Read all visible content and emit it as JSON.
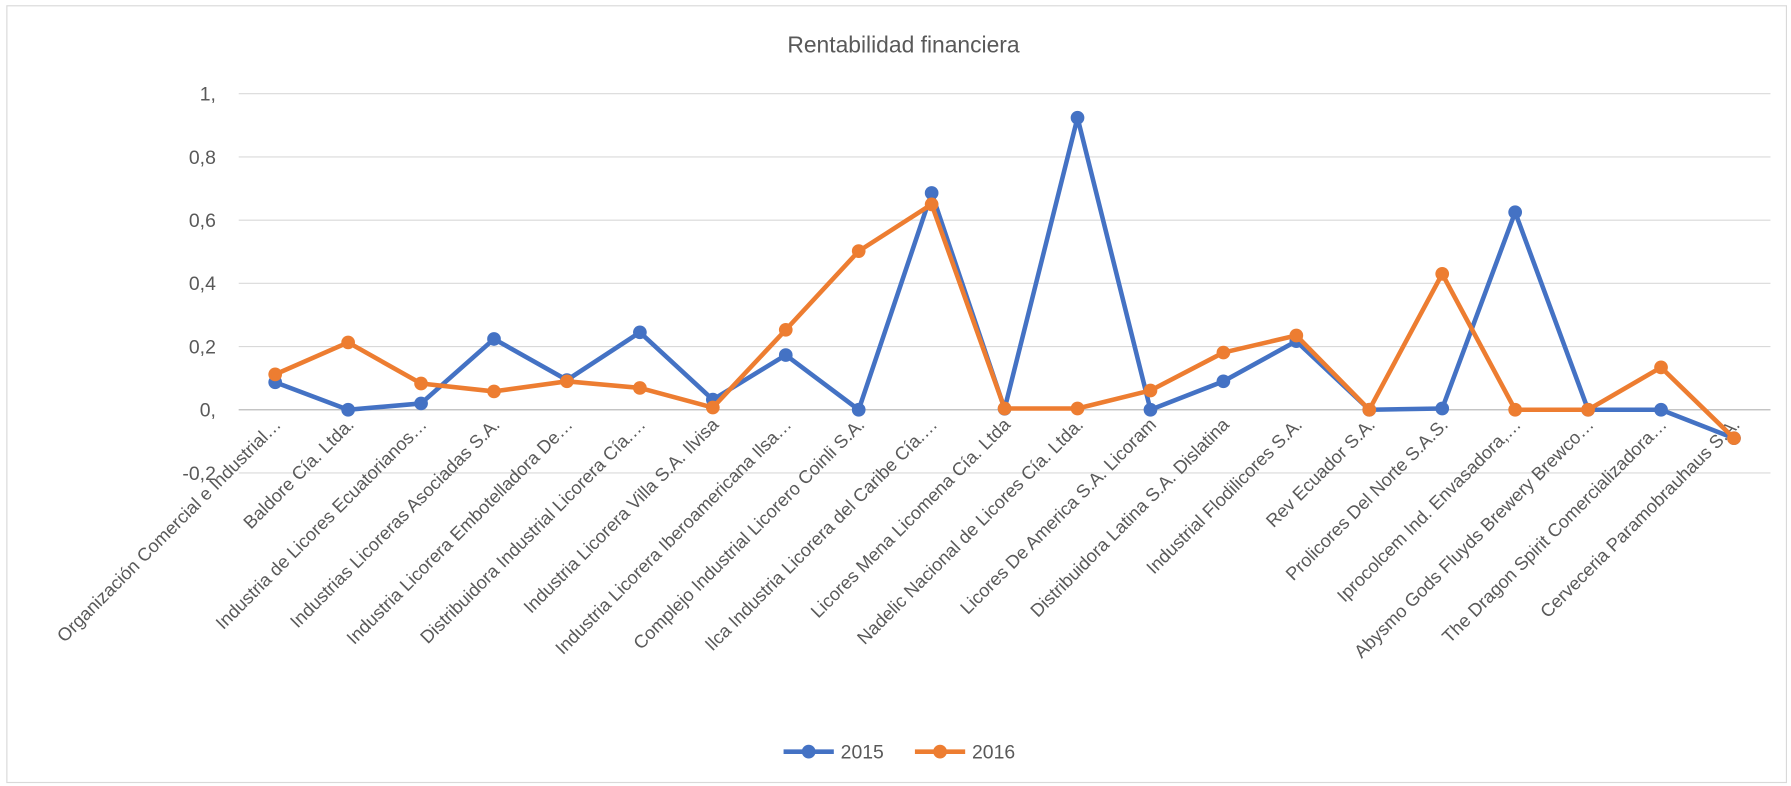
{
  "chart_data": {
    "type": "line",
    "title": "Rentabilidad financiera",
    "categories": [
      "Organización Comercial e Industrial…",
      "Baldore Cía. Ltda.",
      "Industria de Licores Ecuatorianos…",
      "Industrias Licoreras Asociadas S.A.",
      "Industria Licorera Embotelladora De…",
      "Distribuidora Industrial Licorera Cía.…",
      "Industria Licorera Villa S.A. Ilvisa",
      "Industria Licorera Iberoamericana Ilsa…",
      "Complejo Industrial Licorero Coinli S.A.",
      "Ilca Industria Licorera del Caribe Cía.…",
      "Licores Mena Licomena Cía. Ltda",
      "Nadelic Nacional de Licores Cía. Ltda.",
      "Licores De America S.A. Licoram",
      "Distribuidora Latina S.A. Dislatina",
      "Industrial Flodilicores S.A.",
      "Rev Ecuador S.A.",
      "Prolicores Del Norte S.A.S.",
      "Iprocolcem Ind. Envasadora,…",
      "Abysmo Gods Fluyds Brewery Brewco…",
      "The Dragon Spirit Comercializadora…",
      "Cerveceria Paramobrauhaus S.A."
    ],
    "series": [
      {
        "name": "2015",
        "color": "#4472c4",
        "values": [
          0.087,
          0,
          0.02,
          0.224,
          0.094,
          0.245,
          0.032,
          0.173,
          0,
          0.686,
          0.003,
          0.924,
          0,
          0.09,
          0.217,
          0,
          0.004,
          0.625,
          0,
          0,
          -0.09
        ]
      },
      {
        "name": "2016",
        "color": "#ed7d31",
        "values": [
          0.112,
          0.213,
          0.083,
          0.058,
          0.09,
          0.069,
          0.007,
          0.253,
          0.502,
          0.65,
          0.004,
          0.004,
          0.061,
          0.181,
          0.235,
          0,
          0.43,
          0,
          0,
          0.134,
          -0.09
        ]
      }
    ],
    "ylim": [
      -0.2,
      1
    ],
    "yticks": [
      {
        "value": -0.2,
        "label": "-0,2"
      },
      {
        "value": 0,
        "label": "0,"
      },
      {
        "value": 0.2,
        "label": "0,2"
      },
      {
        "value": 0.4,
        "label": "0,4"
      },
      {
        "value": 0.6,
        "label": "0,6"
      },
      {
        "value": 0.8,
        "label": "0,8"
      },
      {
        "value": 1,
        "label": "1,"
      }
    ],
    "grid": true,
    "legend": "bottom"
  }
}
